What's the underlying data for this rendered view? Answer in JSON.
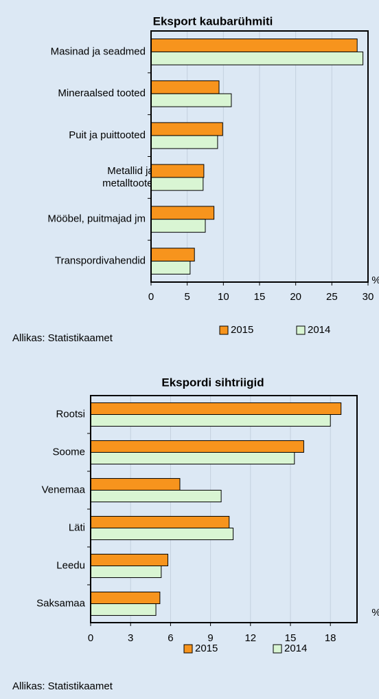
{
  "chart_data": [
    {
      "type": "bar",
      "orientation": "horizontal",
      "title": "Eksport kaubarühmiti",
      "categories": [
        "Masinad ja seadmed",
        "Mineraalsed tooted",
        "Puit ja puittooted",
        "Metallid ja metalltooted",
        "Mööbel, puitmajad jm",
        "Transpordivahendid"
      ],
      "series": [
        {
          "name": "2015",
          "color": "#f7941d",
          "values": [
            28.5,
            9.4,
            9.9,
            7.3,
            8.7,
            6.0
          ]
        },
        {
          "name": "2014",
          "color": "#d9f5d3",
          "values": [
            29.3,
            11.1,
            9.2,
            7.2,
            7.5,
            5.4
          ]
        }
      ],
      "xlim": [
        0,
        30
      ],
      "xticks": [
        0,
        5,
        10,
        15,
        20,
        25,
        30
      ],
      "x_unit": "%",
      "grid": true,
      "source": "Allikas: Statistikaamet"
    },
    {
      "type": "bar",
      "orientation": "horizontal",
      "title": "Ekspordi sihtriigid",
      "categories": [
        "Rootsi",
        "Soome",
        "Venemaa",
        "Läti",
        "Leedu",
        "Saksamaa"
      ],
      "series": [
        {
          "name": "2015",
          "color": "#f7941d",
          "values": [
            18.8,
            16.0,
            6.7,
            10.4,
            5.8,
            5.2
          ]
        },
        {
          "name": "2014",
          "color": "#d9f5d3",
          "values": [
            18.0,
            15.3,
            9.8,
            10.7,
            5.3,
            4.9
          ]
        }
      ],
      "xlim": [
        0,
        20
      ],
      "xticks": [
        0,
        3,
        6,
        9,
        12,
        15,
        18
      ],
      "x_unit": "%",
      "grid": true,
      "source": "Allikas: Statistikaamet"
    }
  ]
}
